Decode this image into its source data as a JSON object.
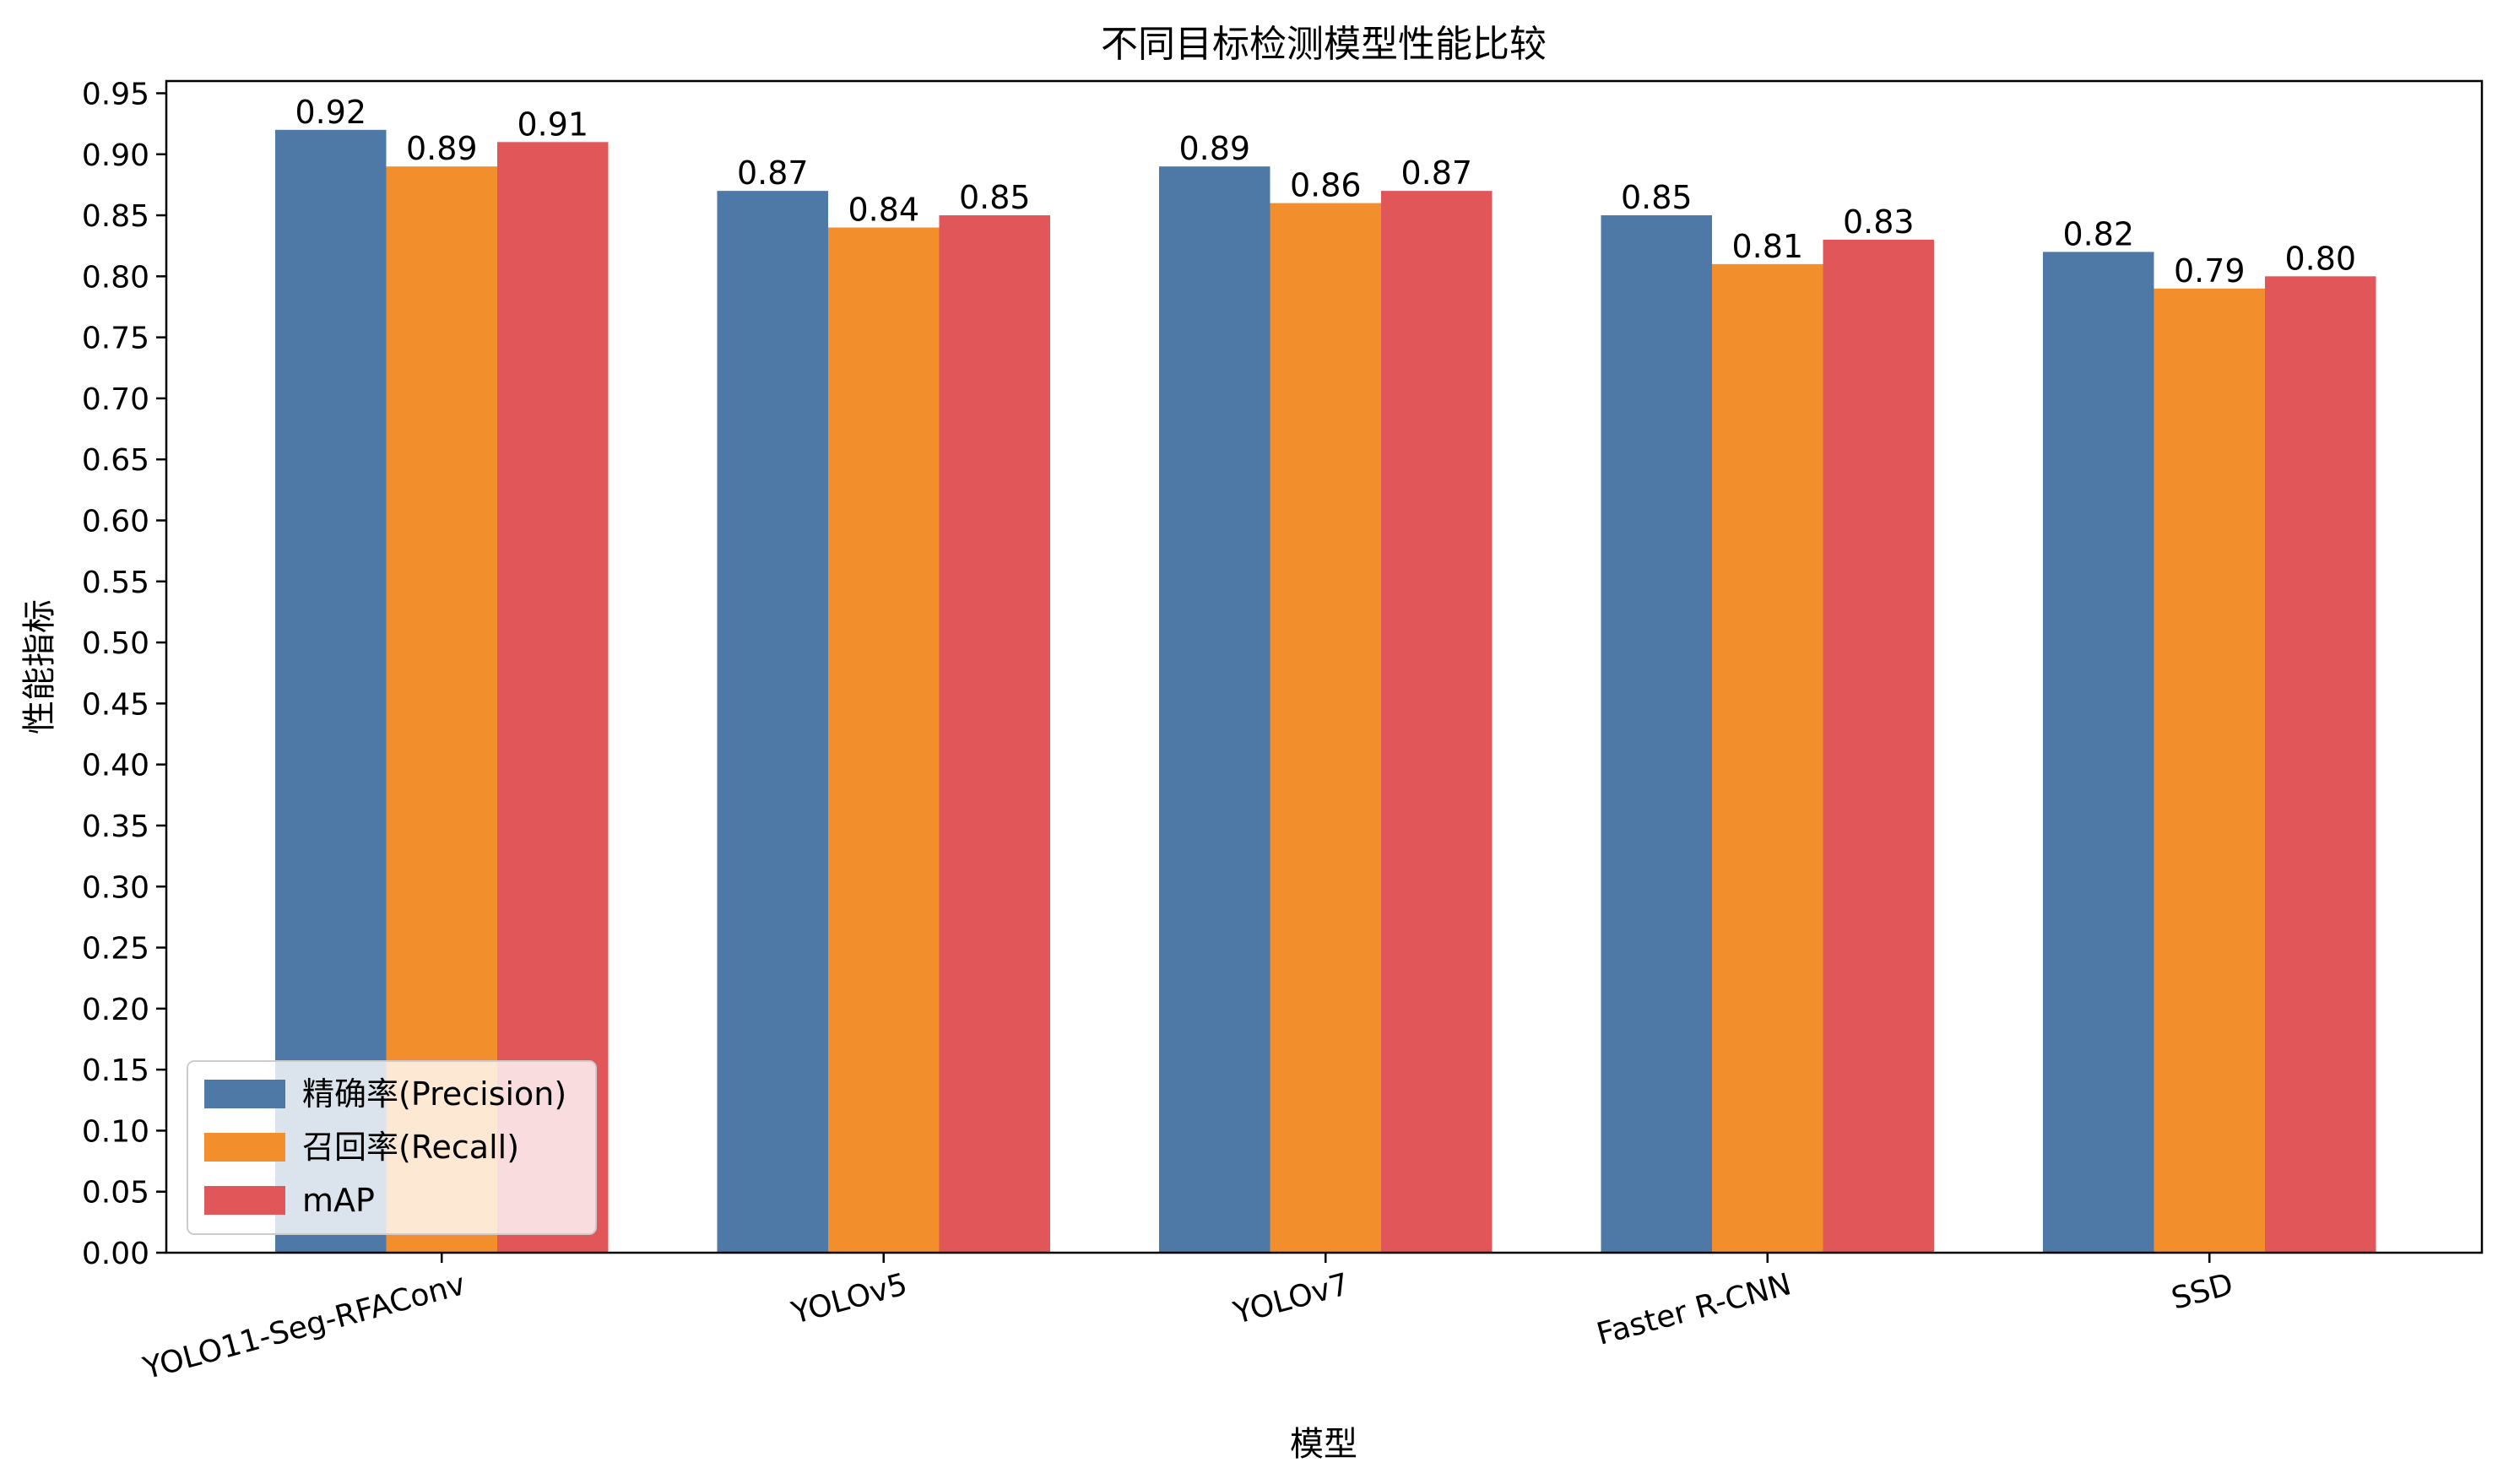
{
  "chart_data": {
    "type": "bar",
    "title": "不同目标检测模型性能比较",
    "xlabel": "模型",
    "ylabel": "性能指标",
    "categories": [
      "YOLO11-Seg-RFAConv",
      "YOLOv5",
      "YOLOv7",
      "Faster R-CNN",
      "SSD"
    ],
    "series": [
      {
        "name": "精确率(Precision)",
        "color": "#4e79a7",
        "values": [
          0.92,
          0.87,
          0.89,
          0.85,
          0.82
        ],
        "labels": [
          "0.92",
          "0.87",
          "0.89",
          "0.85",
          "0.82"
        ]
      },
      {
        "name": "召回率(Recall)",
        "color": "#f28e2b",
        "values": [
          0.89,
          0.84,
          0.86,
          0.81,
          0.79
        ],
        "labels": [
          "0.89",
          "0.84",
          "0.86",
          "0.81",
          "0.79"
        ]
      },
      {
        "name": "mAP",
        "color": "#e15759",
        "values": [
          0.91,
          0.85,
          0.87,
          0.83,
          0.8
        ],
        "labels": [
          "0.91",
          "0.85",
          "0.87",
          "0.83",
          "0.80"
        ]
      }
    ],
    "ylim": [
      0,
      0.96
    ],
    "yticks": [
      "0.00",
      "0.05",
      "0.10",
      "0.15",
      "0.20",
      "0.25",
      "0.30",
      "0.35",
      "0.40",
      "0.45",
      "0.50",
      "0.55",
      "0.60",
      "0.65",
      "0.70",
      "0.75",
      "0.80",
      "0.85",
      "0.90",
      "0.95"
    ],
    "grid": false,
    "legend_position": "lower-left"
  }
}
